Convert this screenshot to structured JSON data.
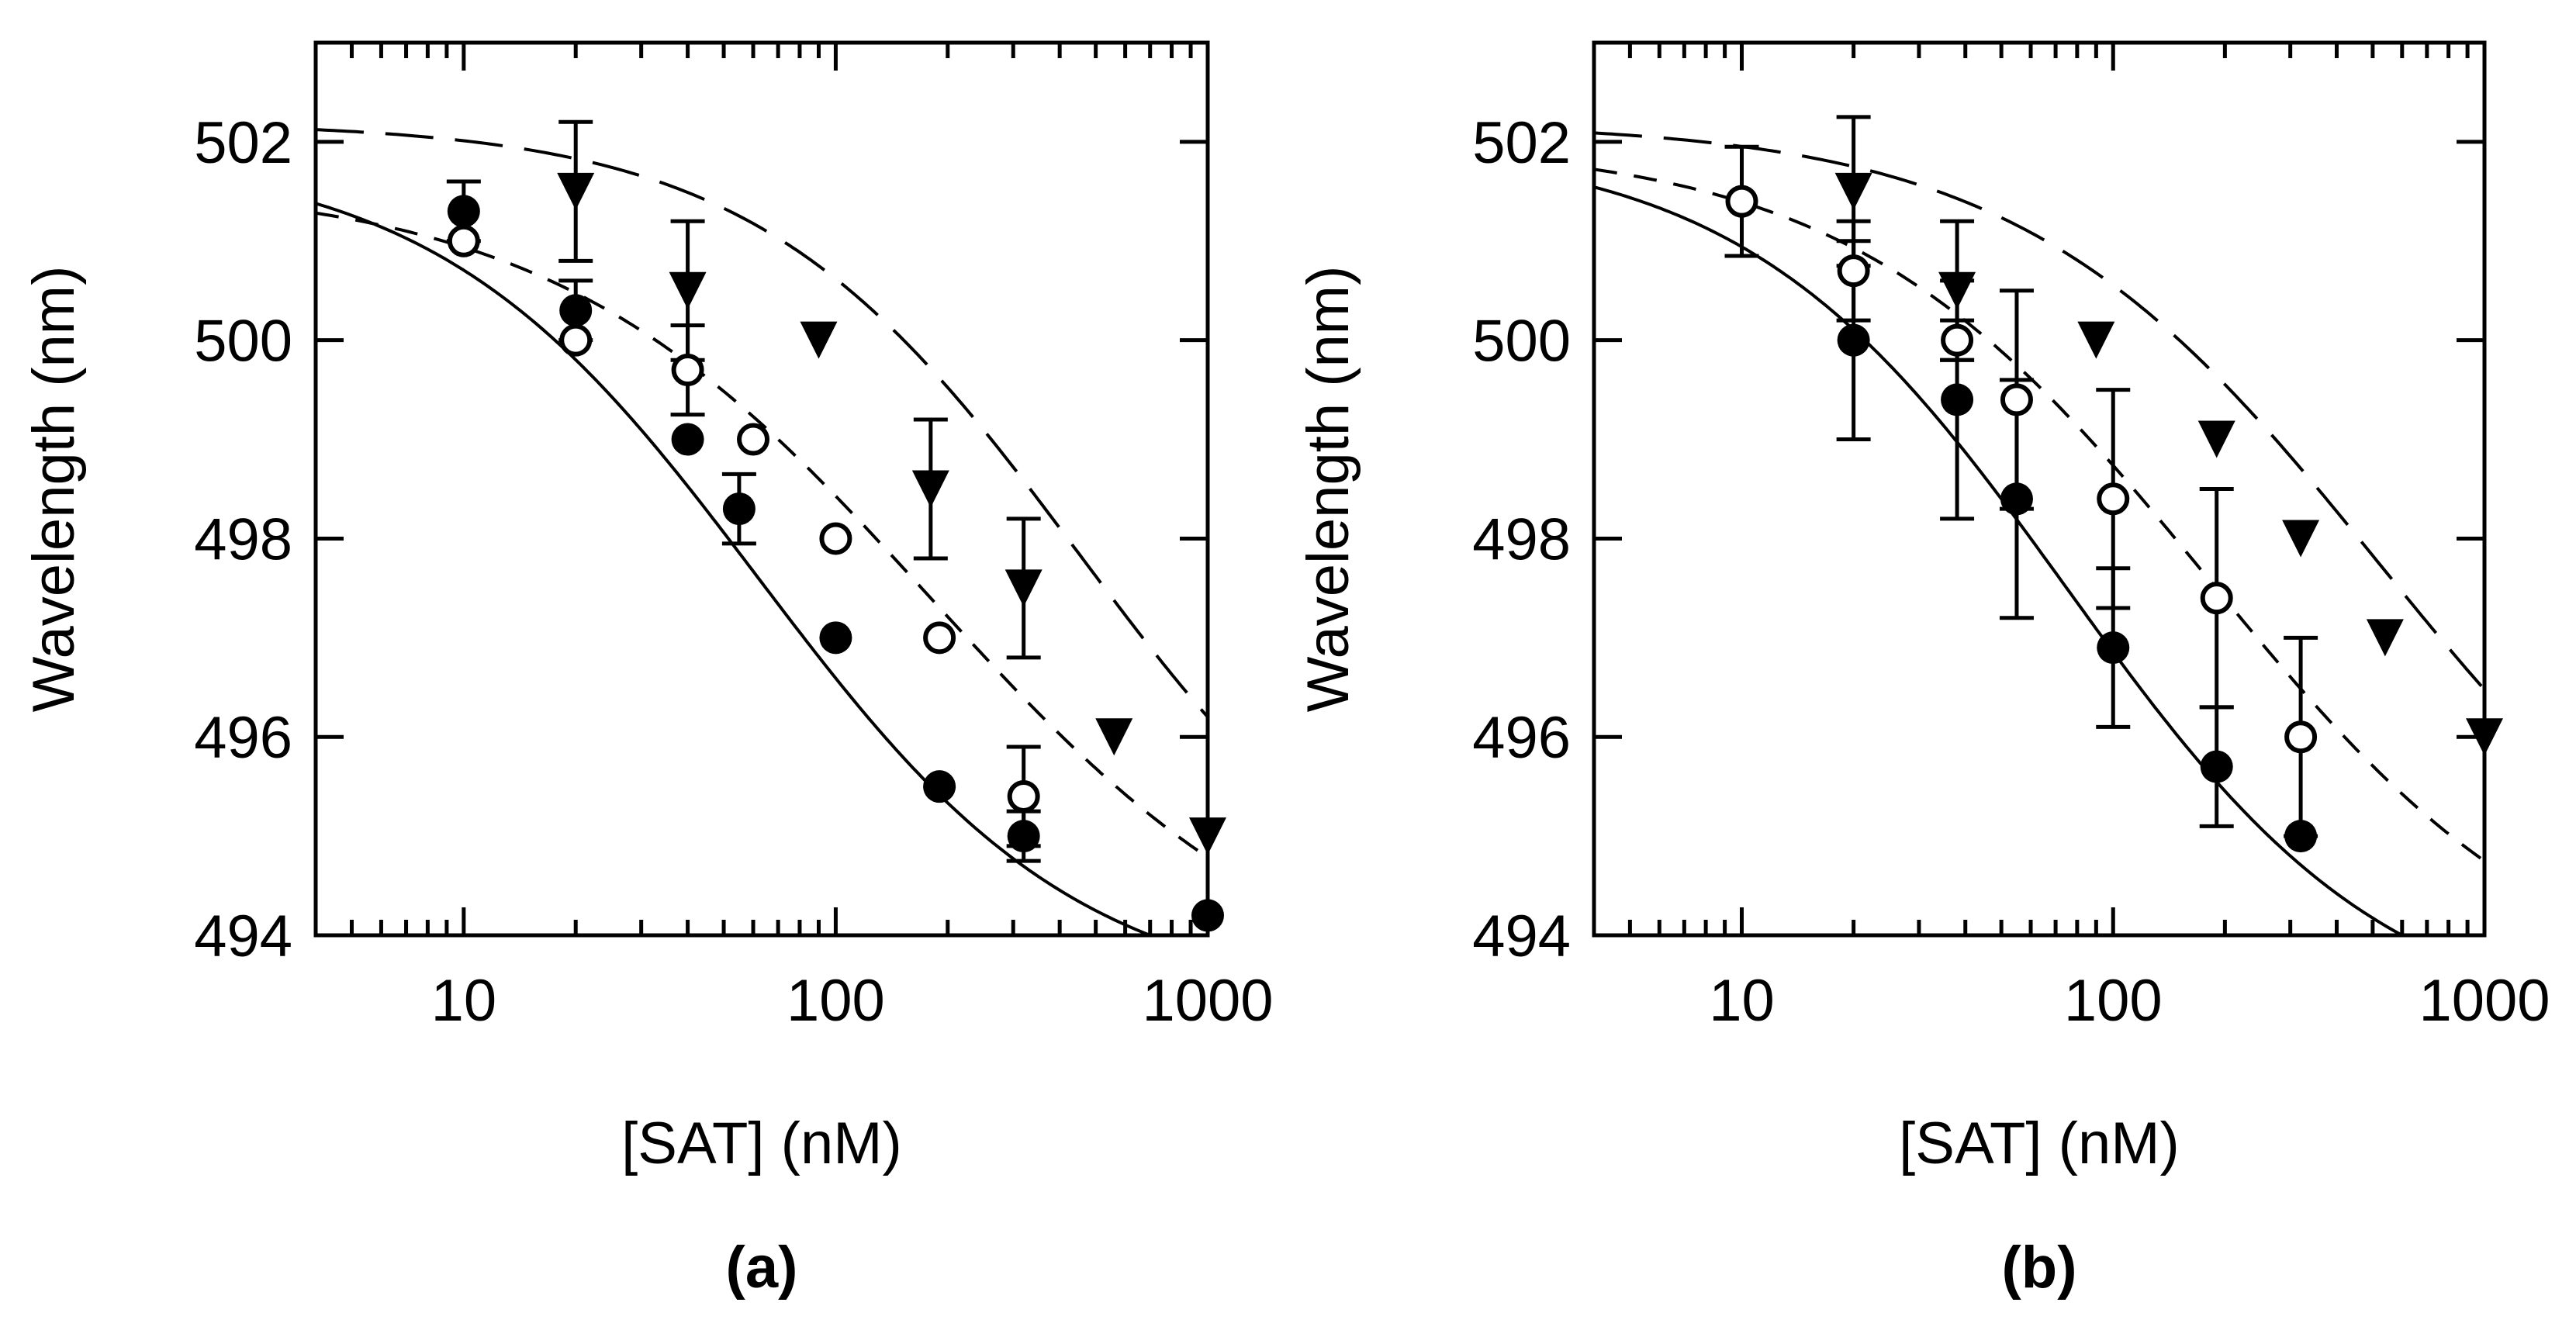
{
  "chart_data": [
    {
      "type": "scatter",
      "panel_label": "(a)",
      "xlabel": "[SAT] (nM)",
      "ylabel": "Wavelength (nm)",
      "xscale": "log",
      "xlim": [
        4,
        1000
      ],
      "ylim": [
        494,
        503
      ],
      "xticks": [
        10,
        100,
        1000
      ],
      "xtick_labels": [
        "10",
        "100",
        "1000"
      ],
      "yticks": [
        494,
        496,
        498,
        500,
        502
      ],
      "ytick_labels": [
        "494",
        "496",
        "498",
        "500",
        "502"
      ],
      "series": [
        {
          "name": "filled circles",
          "marker": "filled-circle",
          "line": "solid",
          "points": [
            {
              "x": 10,
              "y": 501.3,
              "err": 0.3
            },
            {
              "x": 20,
              "y": 500.3,
              "err": 0.3
            },
            {
              "x": 40,
              "y": 499.0
            },
            {
              "x": 55,
              "y": 498.3,
              "err": 0.35
            },
            {
              "x": 100,
              "y": 497.0
            },
            {
              "x": 190,
              "y": 495.5
            },
            {
              "x": 320,
              "y": 495.0,
              "err": 0.25
            },
            {
              "x": 1000,
              "y": 494.2
            }
          ],
          "fit": {
            "top": 501.9,
            "bottom": 493.3,
            "ec50": 62,
            "hill": 1.0
          }
        },
        {
          "name": "open circles",
          "marker": "open-circle",
          "line": "dash-short",
          "points": [
            {
              "x": 10,
              "y": 501.0
            },
            {
              "x": 20,
              "y": 500.0
            },
            {
              "x": 40,
              "y": 499.7,
              "err": 0.45
            },
            {
              "x": 60,
              "y": 499.0
            },
            {
              "x": 100,
              "y": 498.0
            },
            {
              "x": 190,
              "y": 497.0
            },
            {
              "x": 320,
              "y": 495.4,
              "err": 0.5
            }
          ],
          "fit": {
            "top": 501.6,
            "bottom": 493.2,
            "ec50": 180,
            "hill": 0.85
          }
        },
        {
          "name": "filled triangles",
          "marker": "filled-triangle-down",
          "line": "dash-long",
          "points": [
            {
              "x": 20,
              "y": 501.5,
              "err": 0.7
            },
            {
              "x": 40,
              "y": 500.5,
              "err": 0.7
            },
            {
              "x": 90,
              "y": 500.0
            },
            {
              "x": 180,
              "y": 498.5,
              "err": 0.7
            },
            {
              "x": 320,
              "y": 497.5,
              "err": 0.7
            },
            {
              "x": 560,
              "y": 496.0
            },
            {
              "x": 1000,
              "y": 495.0
            }
          ],
          "fit": {
            "top": 502.2,
            "bottom": 493.5,
            "ec50": 450,
            "hill": 1.0
          }
        }
      ]
    },
    {
      "type": "scatter",
      "panel_label": "(b)",
      "xlabel": "[SAT] (nM)",
      "ylabel": "Wavelength (nm)",
      "xscale": "log",
      "xlim": [
        4,
        1000
      ],
      "ylim": [
        494,
        503
      ],
      "xticks": [
        10,
        100,
        1000
      ],
      "xtick_labels": [
        "10",
        "100",
        "1000"
      ],
      "yticks": [
        494,
        496,
        498,
        500,
        502
      ],
      "ytick_labels": [
        "494",
        "496",
        "498",
        "500",
        "502"
      ],
      "series": [
        {
          "name": "filled circles",
          "marker": "filled-circle",
          "line": "solid",
          "points": [
            {
              "x": 20,
              "y": 500.0,
              "err": 1.0
            },
            {
              "x": 38,
              "y": 499.4,
              "err": 1.2
            },
            {
              "x": 55,
              "y": 498.4,
              "err": 1.2
            },
            {
              "x": 100,
              "y": 496.9,
              "err": 0.8
            },
            {
              "x": 190,
              "y": 495.7,
              "err": 0.6
            },
            {
              "x": 320,
              "y": 495.0
            }
          ],
          "fit": {
            "top": 502.0,
            "bottom": 493.0,
            "ec50": 75,
            "hill": 1.0
          }
        },
        {
          "name": "open circles",
          "marker": "open-circle",
          "line": "dash-short",
          "points": [
            {
              "x": 10,
              "y": 501.4,
              "err": 0.55
            },
            {
              "x": 20,
              "y": 500.7,
              "err": 0.5
            },
            {
              "x": 38,
              "y": 500.0,
              "err": 0.2
            },
            {
              "x": 55,
              "y": 499.4,
              "err": 1.1
            },
            {
              "x": 100,
              "y": 498.4,
              "err": 1.1
            },
            {
              "x": 190,
              "y": 497.4,
              "err": 1.1
            },
            {
              "x": 320,
              "y": 496.0,
              "err": 1.0
            }
          ],
          "fit": {
            "top": 502.0,
            "bottom": 493.2,
            "ec50": 180,
            "hill": 0.9
          }
        },
        {
          "name": "filled triangles",
          "marker": "filled-triangle-down",
          "line": "dash-long",
          "points": [
            {
              "x": 20,
              "y": 501.5,
              "err": 0.75
            },
            {
              "x": 38,
              "y": 500.5,
              "err": 0.7
            },
            {
              "x": 90,
              "y": 500.0
            },
            {
              "x": 190,
              "y": 499.0
            },
            {
              "x": 320,
              "y": 498.0
            },
            {
              "x": 540,
              "y": 497.0
            },
            {
              "x": 1000,
              "y": 496.0
            }
          ],
          "fit": {
            "top": 502.2,
            "bottom": 493.3,
            "ec50": 520,
            "hill": 0.9
          }
        }
      ]
    }
  ]
}
